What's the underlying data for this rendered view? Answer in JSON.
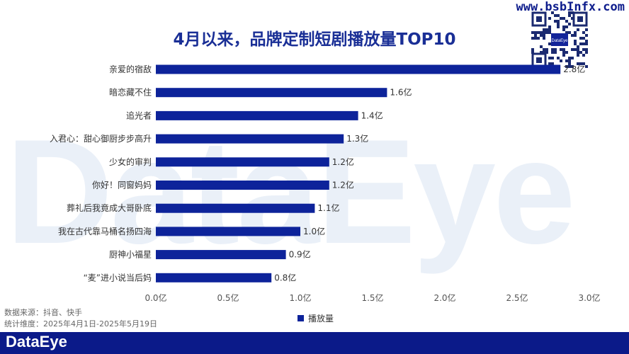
{
  "watermark": "DataEye",
  "site_url": "www.bsbInfx.com",
  "qr_logo": "DataEye",
  "chart_data": {
    "type": "bar",
    "orientation": "horizontal",
    "title": "4月以来，品牌定制短剧播放量TOP10",
    "categories": [
      "亲爱的宿敌",
      "暗恋藏不住",
      "追光者",
      "入君心：甜心御厨步步高升",
      "少女的审判",
      "你好！同窗妈妈",
      "葬礼后我竟成大哥卧底",
      "我在古代靠马桶名扬四海",
      "厨神小福星",
      "“麦”进小说当后妈"
    ],
    "series": [
      {
        "name": "播放量",
        "values": [
          2.8,
          1.6,
          1.4,
          1.3,
          1.2,
          1.2,
          1.1,
          1.0,
          0.9,
          0.8
        ],
        "color": "#0d239a"
      }
    ],
    "value_labels": [
      "2.8亿",
      "1.6亿",
      "1.4亿",
      "1.3亿",
      "1.2亿",
      "1.2亿",
      "1.1亿",
      "1.0亿",
      "0.9亿",
      "0.8亿"
    ],
    "ticks": [
      0,
      0.5,
      1.0,
      1.5,
      2.0,
      2.5,
      3.0
    ],
    "tick_labels": [
      "0.0亿",
      "0.5亿",
      "1.0亿",
      "1.5亿",
      "2.0亿",
      "2.5亿",
      "3.0亿"
    ],
    "xlim": [
      0,
      3.0
    ],
    "legend_position": "bottom-center",
    "grid": false
  },
  "notes": {
    "source": "数据来源：抖音、快手",
    "period": "统计维度：2025年4月1日-2025年5月19日"
  },
  "footer": {
    "logo": "DataEye"
  }
}
